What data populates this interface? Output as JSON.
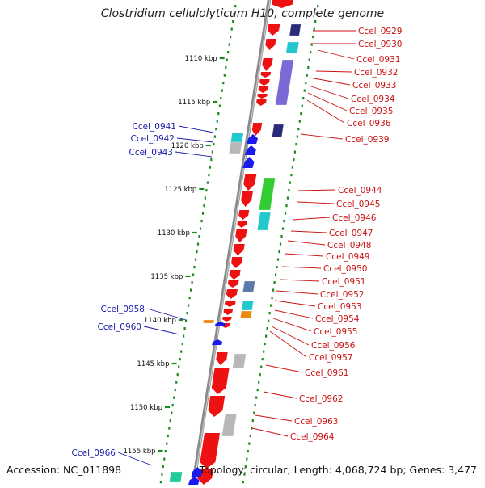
{
  "title": "Clostridium cellulolyticum H10, complete genome",
  "footer": {
    "accession": "Accession: NC_011898",
    "topology": "Topology: circular; Length: 4,068,724 bp; Genes: 3,477"
  },
  "colors": {
    "forward_gene": "#ee1111",
    "reverse_gene": "#1a1aee",
    "right_label": "#cc1111",
    "left_label": "#1a1aaa",
    "backbone": "#8a8a8a",
    "tick": "#1c8a1c",
    "cog_cyan": "#22c8cc",
    "cog_navy": "#2a2a7a",
    "cog_purple": "#7a6ad8",
    "cog_green": "#33cc33",
    "cog_gray": "#b8b8b8",
    "cog_steel": "#5a7aa8",
    "cog_orange": "#ee8811",
    "cog_teal": "#22cc99"
  },
  "axis_ticks": [
    "1110 kbp",
    "1115 kbp",
    "1120 kbp",
    "1125 kbp",
    "1130 kbp",
    "1135 kbp",
    "1140 kbp",
    "1145 kbp",
    "1150 kbp",
    "1155 kbp"
  ],
  "right_labels": [
    "Ccel_0929",
    "Ccel_0930",
    "Ccel_0931",
    "Ccel_0932",
    "Ccel_0933",
    "Ccel_0934",
    "Ccel_0935",
    "Ccel_0936",
    "Ccel_0939",
    "Ccel_0944",
    "Ccel_0945",
    "Ccel_0946",
    "Ccel_0947",
    "Ccel_0948",
    "Ccel_0949",
    "Ccel_0950",
    "Ccel_0951",
    "Ccel_0952",
    "Ccel_0953",
    "Ccel_0954",
    "Ccel_0955",
    "Ccel_0956",
    "Ccel_0957",
    "Ccel_0961",
    "Ccel_0962",
    "Ccel_0963",
    "Ccel_0964"
  ],
  "left_labels": [
    "Ccel_0941",
    "Ccel_0942",
    "Ccel_0943",
    "Ccel_0958",
    "Ccel_0960",
    "Ccel_0966"
  ]
}
